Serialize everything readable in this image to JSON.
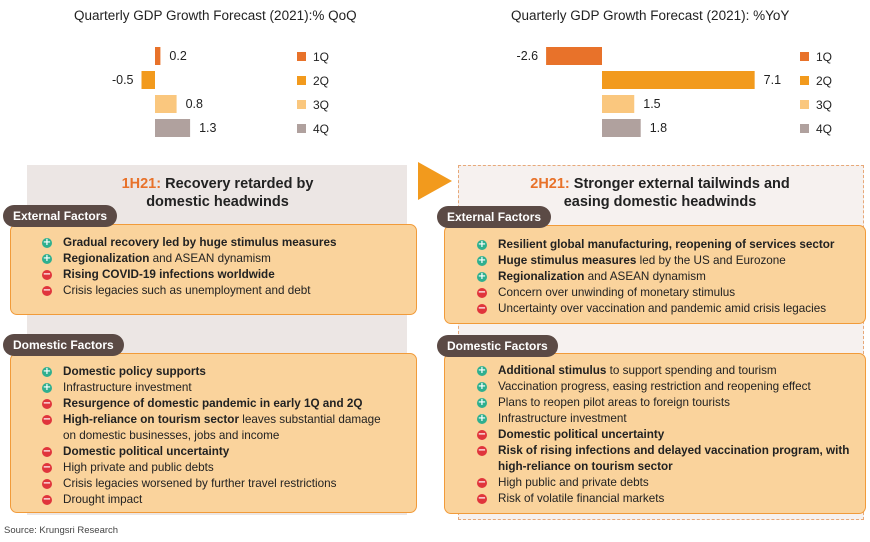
{
  "chart_data": [
    {
      "type": "bar",
      "orientation": "horizontal",
      "title": "Quarterly GDP Growth Forecast (2021):% QoQ",
      "categories": [
        "1Q",
        "2Q",
        "3Q",
        "4Q"
      ],
      "values": [
        0.2,
        -0.5,
        0.8,
        1.3
      ],
      "value_labels": [
        "0.2",
        "-0.5",
        "0.8",
        "1.3"
      ],
      "colors": [
        "#e8722a",
        "#f29a1d",
        "#fac77e",
        "#b0a19e"
      ],
      "legend": "right"
    },
    {
      "type": "bar",
      "orientation": "horizontal",
      "title": "Quarterly GDP Growth Forecast (2021): %YoY",
      "categories": [
        "1Q",
        "2Q",
        "3Q",
        "4Q"
      ],
      "values": [
        -2.6,
        7.1,
        1.5,
        1.8
      ],
      "value_labels": [
        "-2.6",
        "7.1",
        "1.5",
        "1.8"
      ],
      "colors": [
        "#e8722a",
        "#f29a1d",
        "#fac77e",
        "#b0a19e"
      ],
      "legend": "right"
    }
  ],
  "left": {
    "heading_accent": "1H21:",
    "heading_rest": "Recovery retarded by",
    "heading_line2": "domestic headwinds",
    "external": {
      "label": "External Factors",
      "items": [
        {
          "sign": "+",
          "bold": "Gradual recovery led by huge stimulus measures",
          "rest": ""
        },
        {
          "sign": "+",
          "bold": "Regionalization",
          "rest": " and ASEAN dynamism"
        },
        {
          "sign": "-",
          "bold": "Rising COVID-19 infections worldwide",
          "rest": ""
        },
        {
          "sign": "-",
          "bold": "",
          "rest": "Crisis legacies such as unemployment and debt"
        }
      ]
    },
    "domestic": {
      "label": "Domestic Factors",
      "items": [
        {
          "sign": "+",
          "bold": "Domestic policy supports",
          "rest": ""
        },
        {
          "sign": "+",
          "bold": "",
          "rest": "Infrastructure investment"
        },
        {
          "sign": "-",
          "bold": "Resurgence of domestic pandemic in early 1Q and 2Q",
          "rest": ""
        },
        {
          "sign": "-",
          "bold": "High-reliance on tourism sector",
          "rest": " leaves substantial damage on domestic businesses, jobs and income"
        },
        {
          "sign": "-",
          "bold": "Domestic political uncertainty",
          "rest": ""
        },
        {
          "sign": "-",
          "bold": "",
          "rest": "High private and public debts"
        },
        {
          "sign": "-",
          "bold": "",
          "rest": "Crisis legacies worsened by further travel restrictions"
        },
        {
          "sign": "-",
          "bold": "",
          "rest": "Drought impact"
        }
      ]
    }
  },
  "right": {
    "heading_accent": "2H21:",
    "heading_rest": "Stronger external tailwinds and",
    "heading_line2": "easing domestic headwinds",
    "external": {
      "label": "External Factors",
      "items": [
        {
          "sign": "+",
          "bold": "Resilient global manufacturing, reopening of services sector",
          "rest": ""
        },
        {
          "sign": "+",
          "bold": "Huge stimulus measures",
          "rest": " led by the US and Eurozone"
        },
        {
          "sign": "+",
          "bold": "Regionalization",
          "rest": " and ASEAN dynamism"
        },
        {
          "sign": "-",
          "bold": "",
          "rest": "Concern over unwinding of monetary stimulus"
        },
        {
          "sign": "-",
          "bold": "",
          "rest": "Uncertainty over vaccination and pandemic amid crisis legacies"
        }
      ]
    },
    "domestic": {
      "label": "Domestic Factors",
      "items": [
        {
          "sign": "+",
          "bold": "Additional stimulus",
          "rest": " to support spending and tourism"
        },
        {
          "sign": "+",
          "bold": "",
          "rest": "Vaccination progress, easing restriction and reopening effect"
        },
        {
          "sign": "+",
          "bold": "",
          "rest": "Plans to reopen pilot areas to foreign tourists"
        },
        {
          "sign": "+",
          "bold": "",
          "rest": "Infrastructure investment"
        },
        {
          "sign": "-",
          "bold": "Domestic political uncertainty",
          "rest": ""
        },
        {
          "sign": "-",
          "bold": "Risk of rising infections and delayed vaccination program, with high-reliance on tourism sector",
          "rest": ""
        },
        {
          "sign": "-",
          "bold": "",
          "rest": "High public and private debts"
        },
        {
          "sign": "-",
          "bold": "",
          "rest": "Risk of volatile financial markets"
        }
      ]
    }
  },
  "source": "Source: Krungsri Research"
}
